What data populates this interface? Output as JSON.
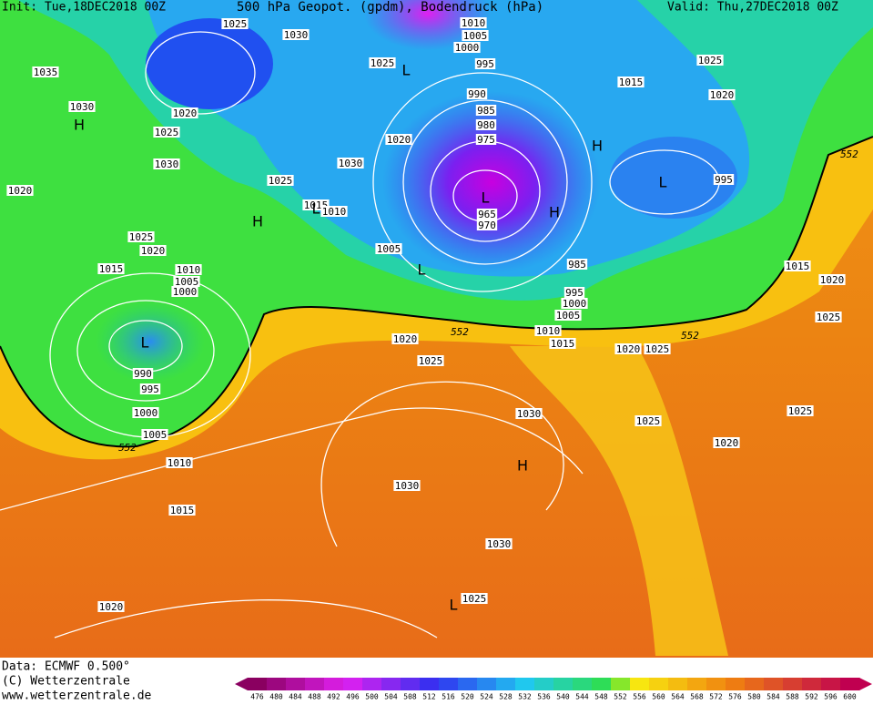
{
  "header": {
    "init": "Init: Tue,18DEC2018 00Z",
    "title": "500 hPa Geopot. (gpdm), Bodendruck (hPa)",
    "valid": "Valid: Thu,27DEC2018 00Z"
  },
  "isobar_labels": [
    "1025",
    "1030",
    "1035",
    "1030",
    "1020",
    "1025",
    "1030",
    "1020",
    "1025",
    "1025",
    "1020",
    "1030",
    "1015",
    "1010",
    "1005",
    "1010",
    "1005",
    "1000",
    "995",
    "990",
    "985",
    "980",
    "975",
    "965",
    "970",
    "1025",
    "1015",
    "1020",
    "995",
    "1025",
    "1020",
    "1015",
    "1010",
    "1005",
    "1000",
    "990",
    "995",
    "1000",
    "1005",
    "1010",
    "1015",
    "1020",
    "985",
    "995",
    "1000",
    "1005",
    "1010",
    "1015",
    "1020",
    "1025",
    "1020",
    "1025",
    "1030",
    "1030",
    "1030",
    "1025",
    "1025",
    "1020",
    "1025",
    "1015",
    "1020",
    "1025"
  ],
  "contour_labels": [
    "552",
    "552",
    "552",
    "552"
  ],
  "pressure_centers": [
    "H",
    "L",
    "H",
    "L",
    "L",
    "H",
    "H",
    "L",
    "L",
    "L",
    "H",
    "L"
  ],
  "footer": {
    "data": "Data: ECMWF   0.500°",
    "copyright": "(C) Wetterzentrale",
    "url": "www.wetterzentrale.de"
  },
  "scale": {
    "labels": [
      "476",
      "480",
      "484",
      "488",
      "492",
      "496",
      "500",
      "504",
      "508",
      "512",
      "516",
      "520",
      "524",
      "528",
      "532",
      "536",
      "540",
      "544",
      "548",
      "552",
      "556",
      "560",
      "564",
      "568",
      "572",
      "576",
      "580",
      "584",
      "588",
      "592",
      "596",
      "600"
    ]
  }
}
